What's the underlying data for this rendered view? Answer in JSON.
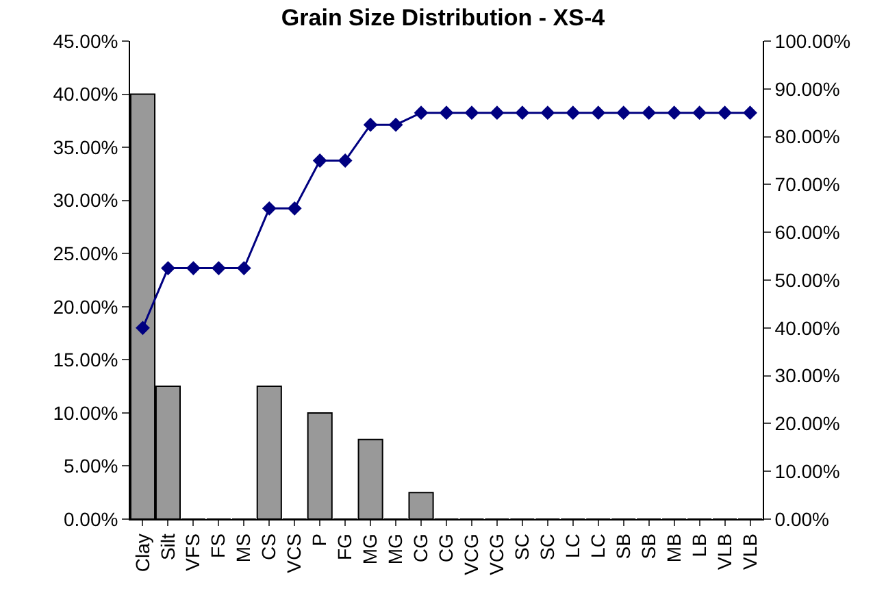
{
  "chart_data": {
    "type": "bar",
    "title": "Grain Size Distribution - XS-4",
    "categories": [
      "Clay",
      "Silt",
      "VFS",
      "FS",
      "MS",
      "CS",
      "VCS",
      "P",
      "FG",
      "MG",
      "MG",
      "CG",
      "CG",
      "VCG",
      "VCG",
      "SC",
      "SC",
      "LC",
      "LC",
      "SB",
      "SB",
      "MB",
      "LB",
      "VLB",
      "VLB"
    ],
    "series": [
      {
        "color": "#999999",
        "values": [
          40,
          12.5,
          0,
          0,
          0,
          12.5,
          0,
          10,
          0,
          7.5,
          0,
          2.5,
          0,
          0,
          0,
          0,
          0,
          0,
          0,
          0,
          0,
          0,
          0,
          0,
          0
        ]
      },
      {
        "type": "line",
        "axis": "y2",
        "color": "#000080",
        "marker": "diamond",
        "values": [
          40,
          52.5,
          52.5,
          52.5,
          52.5,
          65,
          65,
          75,
          75,
          82.5,
          82.5,
          85,
          85,
          85,
          85,
          85,
          85,
          85,
          85,
          85,
          85,
          85,
          85,
          85,
          85
        ]
      }
    ],
    "ylim": [
      0,
      45
    ],
    "yticks": [
      {
        "value": 0,
        "label": "0.00%"
      },
      {
        "value": 5,
        "label": "5.00%"
      },
      {
        "value": 10,
        "label": "10.00%"
      },
      {
        "value": 15,
        "label": "15.00%"
      },
      {
        "value": 20,
        "label": "20.00%"
      },
      {
        "value": 25,
        "label": "25.00%"
      },
      {
        "value": 30,
        "label": "30.00%"
      },
      {
        "value": 35,
        "label": "35.00%"
      },
      {
        "value": 40,
        "label": "40.00%"
      },
      {
        "value": 45,
        "label": "45.00%"
      }
    ],
    "y2lim": [
      0,
      100
    ],
    "y2ticks": [
      {
        "value": 0,
        "label": "0.00%"
      },
      {
        "value": 10,
        "label": "10.00%"
      },
      {
        "value": 20,
        "label": "20.00%"
      },
      {
        "value": 30,
        "label": "30.00%"
      },
      {
        "value": 40,
        "label": "40.00%"
      },
      {
        "value": 50,
        "label": "50.00%"
      },
      {
        "value": 60,
        "label": "60.00%"
      },
      {
        "value": 70,
        "label": "70.00%"
      },
      {
        "value": 80,
        "label": "80.00%"
      },
      {
        "value": 90,
        "label": "90.00%"
      },
      {
        "value": 100,
        "label": "100.00%"
      }
    ]
  }
}
